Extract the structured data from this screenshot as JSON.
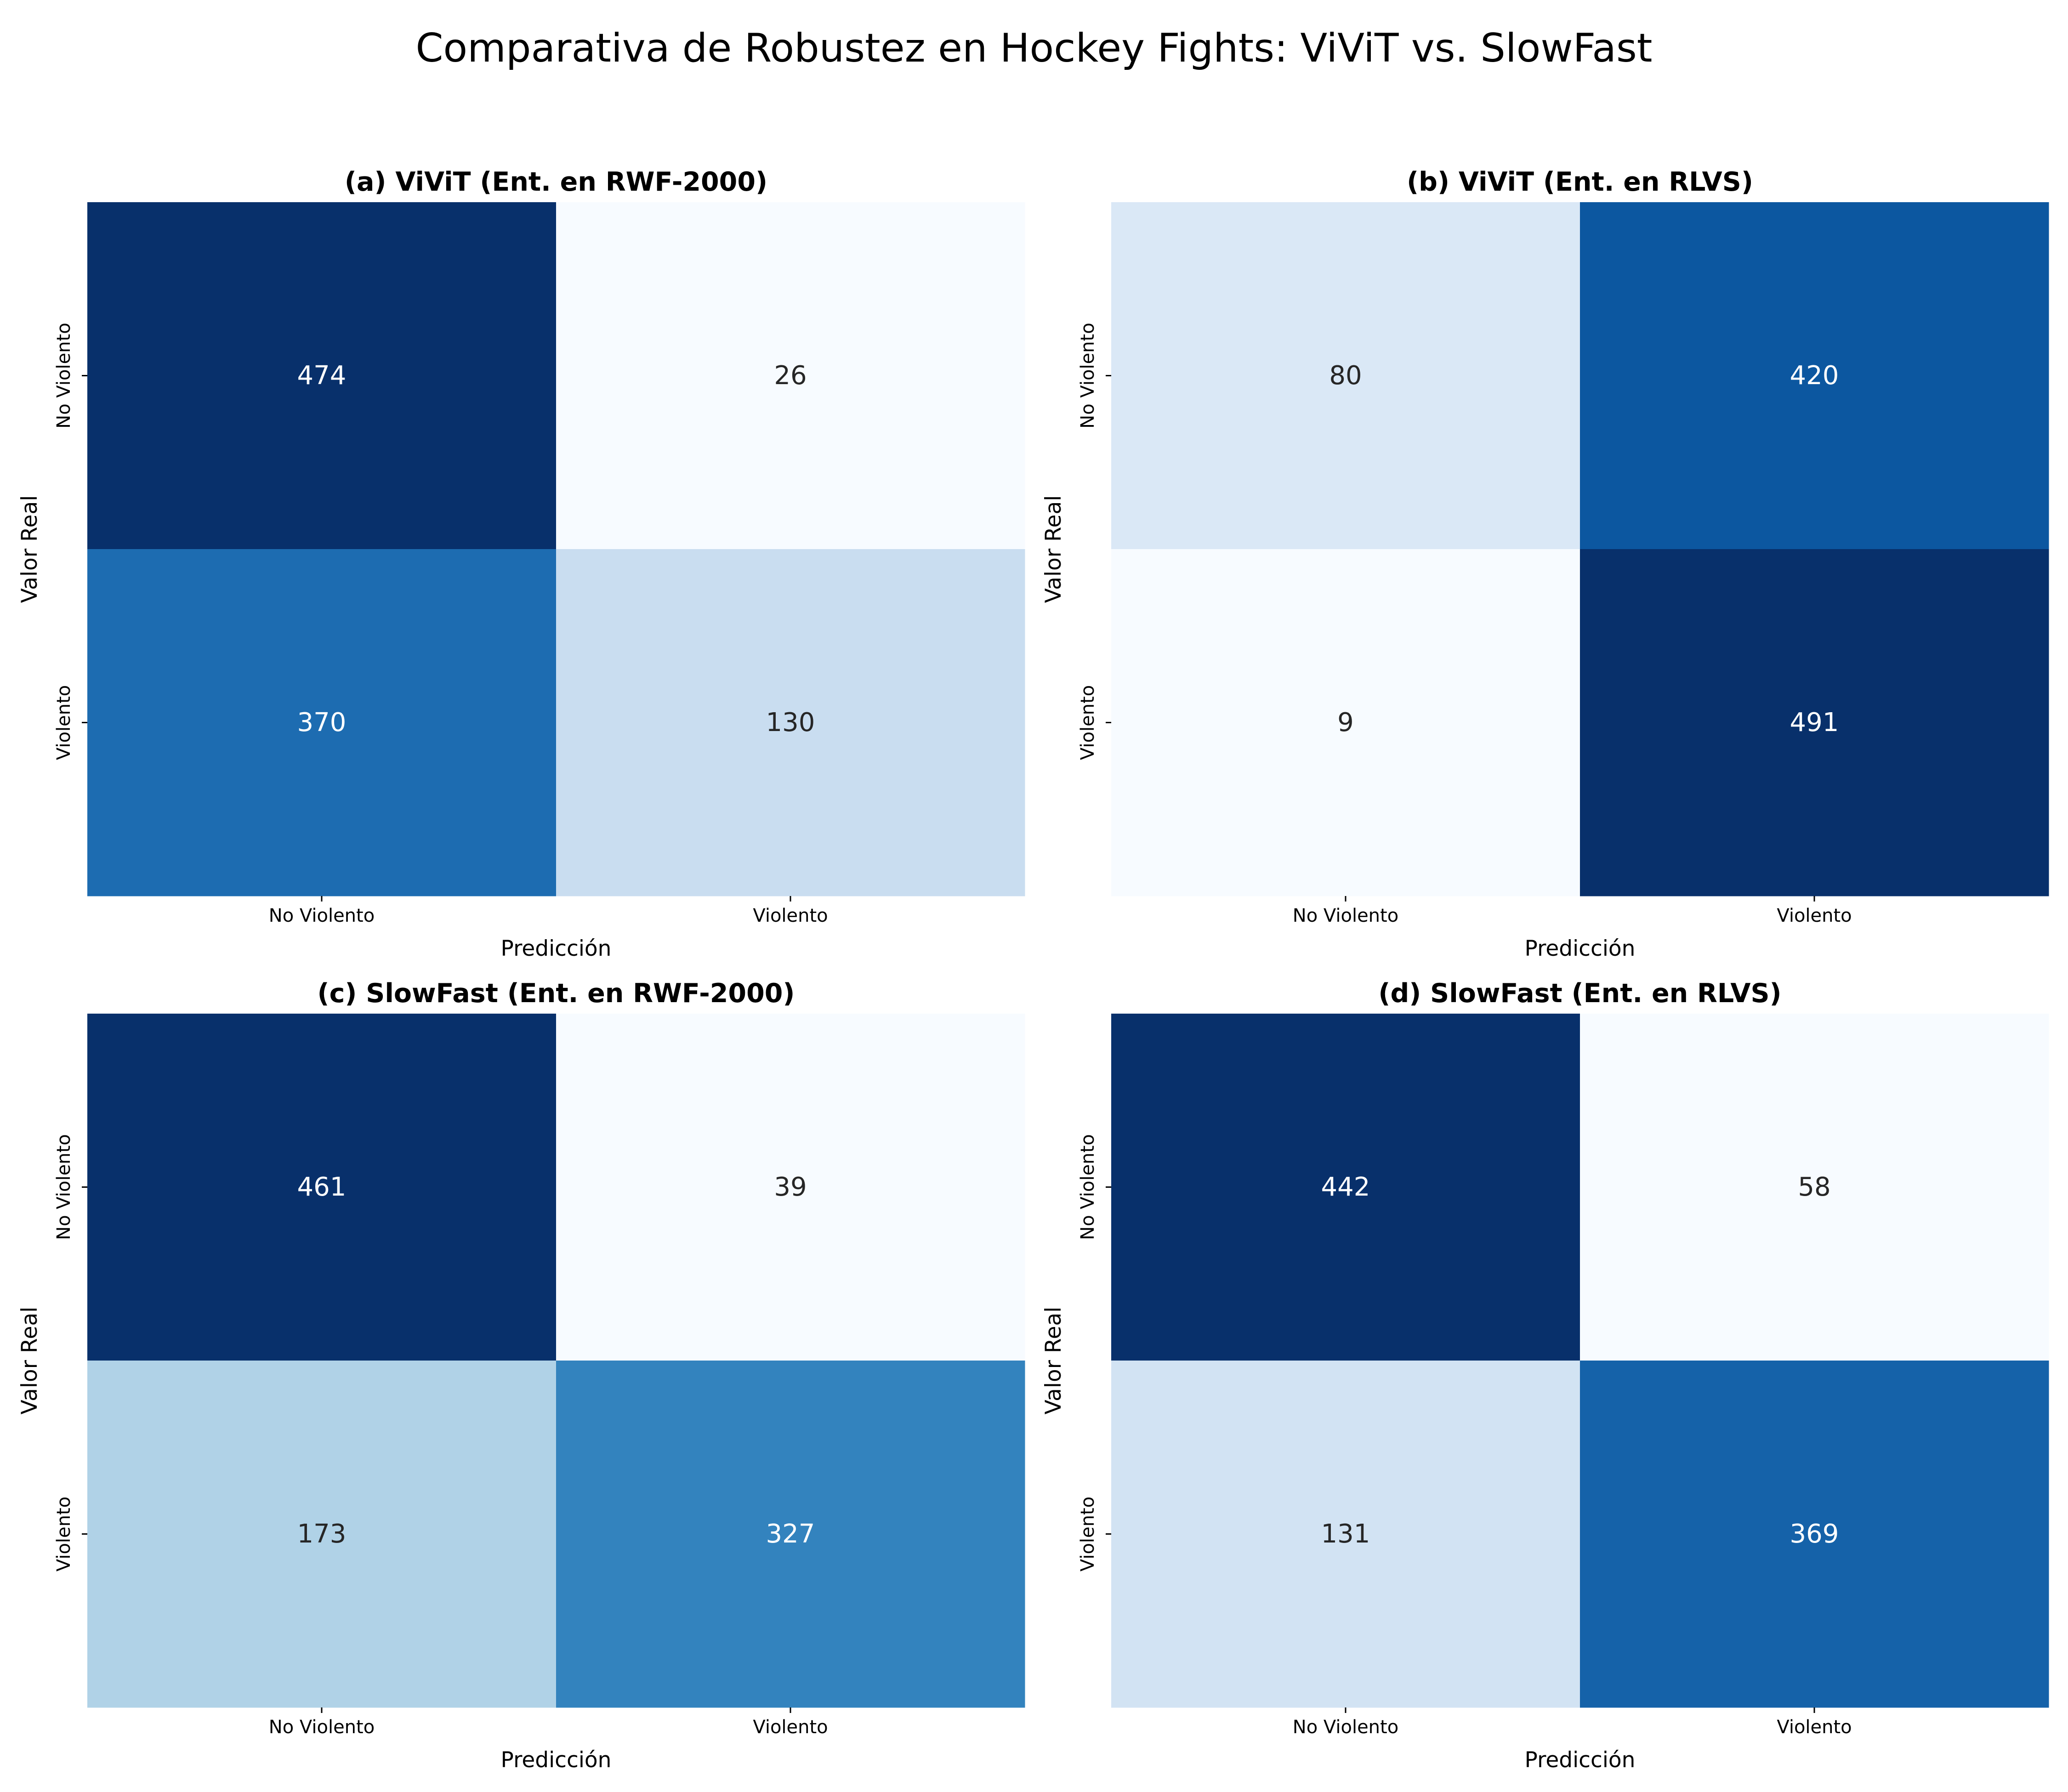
{
  "title": "Comparativa de Robustez en Hockey Fights: ViViT vs. SlowFast",
  "colors": {
    "scale_low": "#f7fbff",
    "scale_high": "#08306b",
    "text_dark": "#262626",
    "text_light": "#ffffff"
  },
  "chart_data": [
    {
      "type": "heatmap",
      "title": "(a) ViViT (Ent. en RWF-2000)",
      "xlabel": "Predicción",
      "ylabel": "Valor Real",
      "x_categories": [
        "No Violento",
        "Violento"
      ],
      "y_categories": [
        "No Violento",
        "Violento"
      ],
      "values": [
        [
          474,
          26
        ],
        [
          370,
          130
        ]
      ],
      "colormap": "Blues",
      "colorbar": false
    },
    {
      "type": "heatmap",
      "title": "(b) ViViT (Ent. en RLVS)",
      "xlabel": "Predicción",
      "ylabel": "Valor Real",
      "x_categories": [
        "No Violento",
        "Violento"
      ],
      "y_categories": [
        "No Violento",
        "Violento"
      ],
      "values": [
        [
          80,
          420
        ],
        [
          9,
          491
        ]
      ],
      "colormap": "Blues",
      "colorbar": false
    },
    {
      "type": "heatmap",
      "title": "(c) SlowFast (Ent. en RWF-2000)",
      "xlabel": "Predicción",
      "ylabel": "Valor Real",
      "x_categories": [
        "No Violento",
        "Violento"
      ],
      "y_categories": [
        "No Violento",
        "Violento"
      ],
      "values": [
        [
          461,
          39
        ],
        [
          173,
          327
        ]
      ],
      "colormap": "Blues",
      "colorbar": false
    },
    {
      "type": "heatmap",
      "title": "(d) SlowFast (Ent. en RLVS)",
      "xlabel": "Predicción",
      "ylabel": "Valor Real",
      "x_categories": [
        "No Violento",
        "Violento"
      ],
      "y_categories": [
        "No Violento",
        "Violento"
      ],
      "values": [
        [
          442,
          58
        ],
        [
          131,
          369
        ]
      ],
      "colormap": "Blues",
      "colorbar": false
    }
  ]
}
